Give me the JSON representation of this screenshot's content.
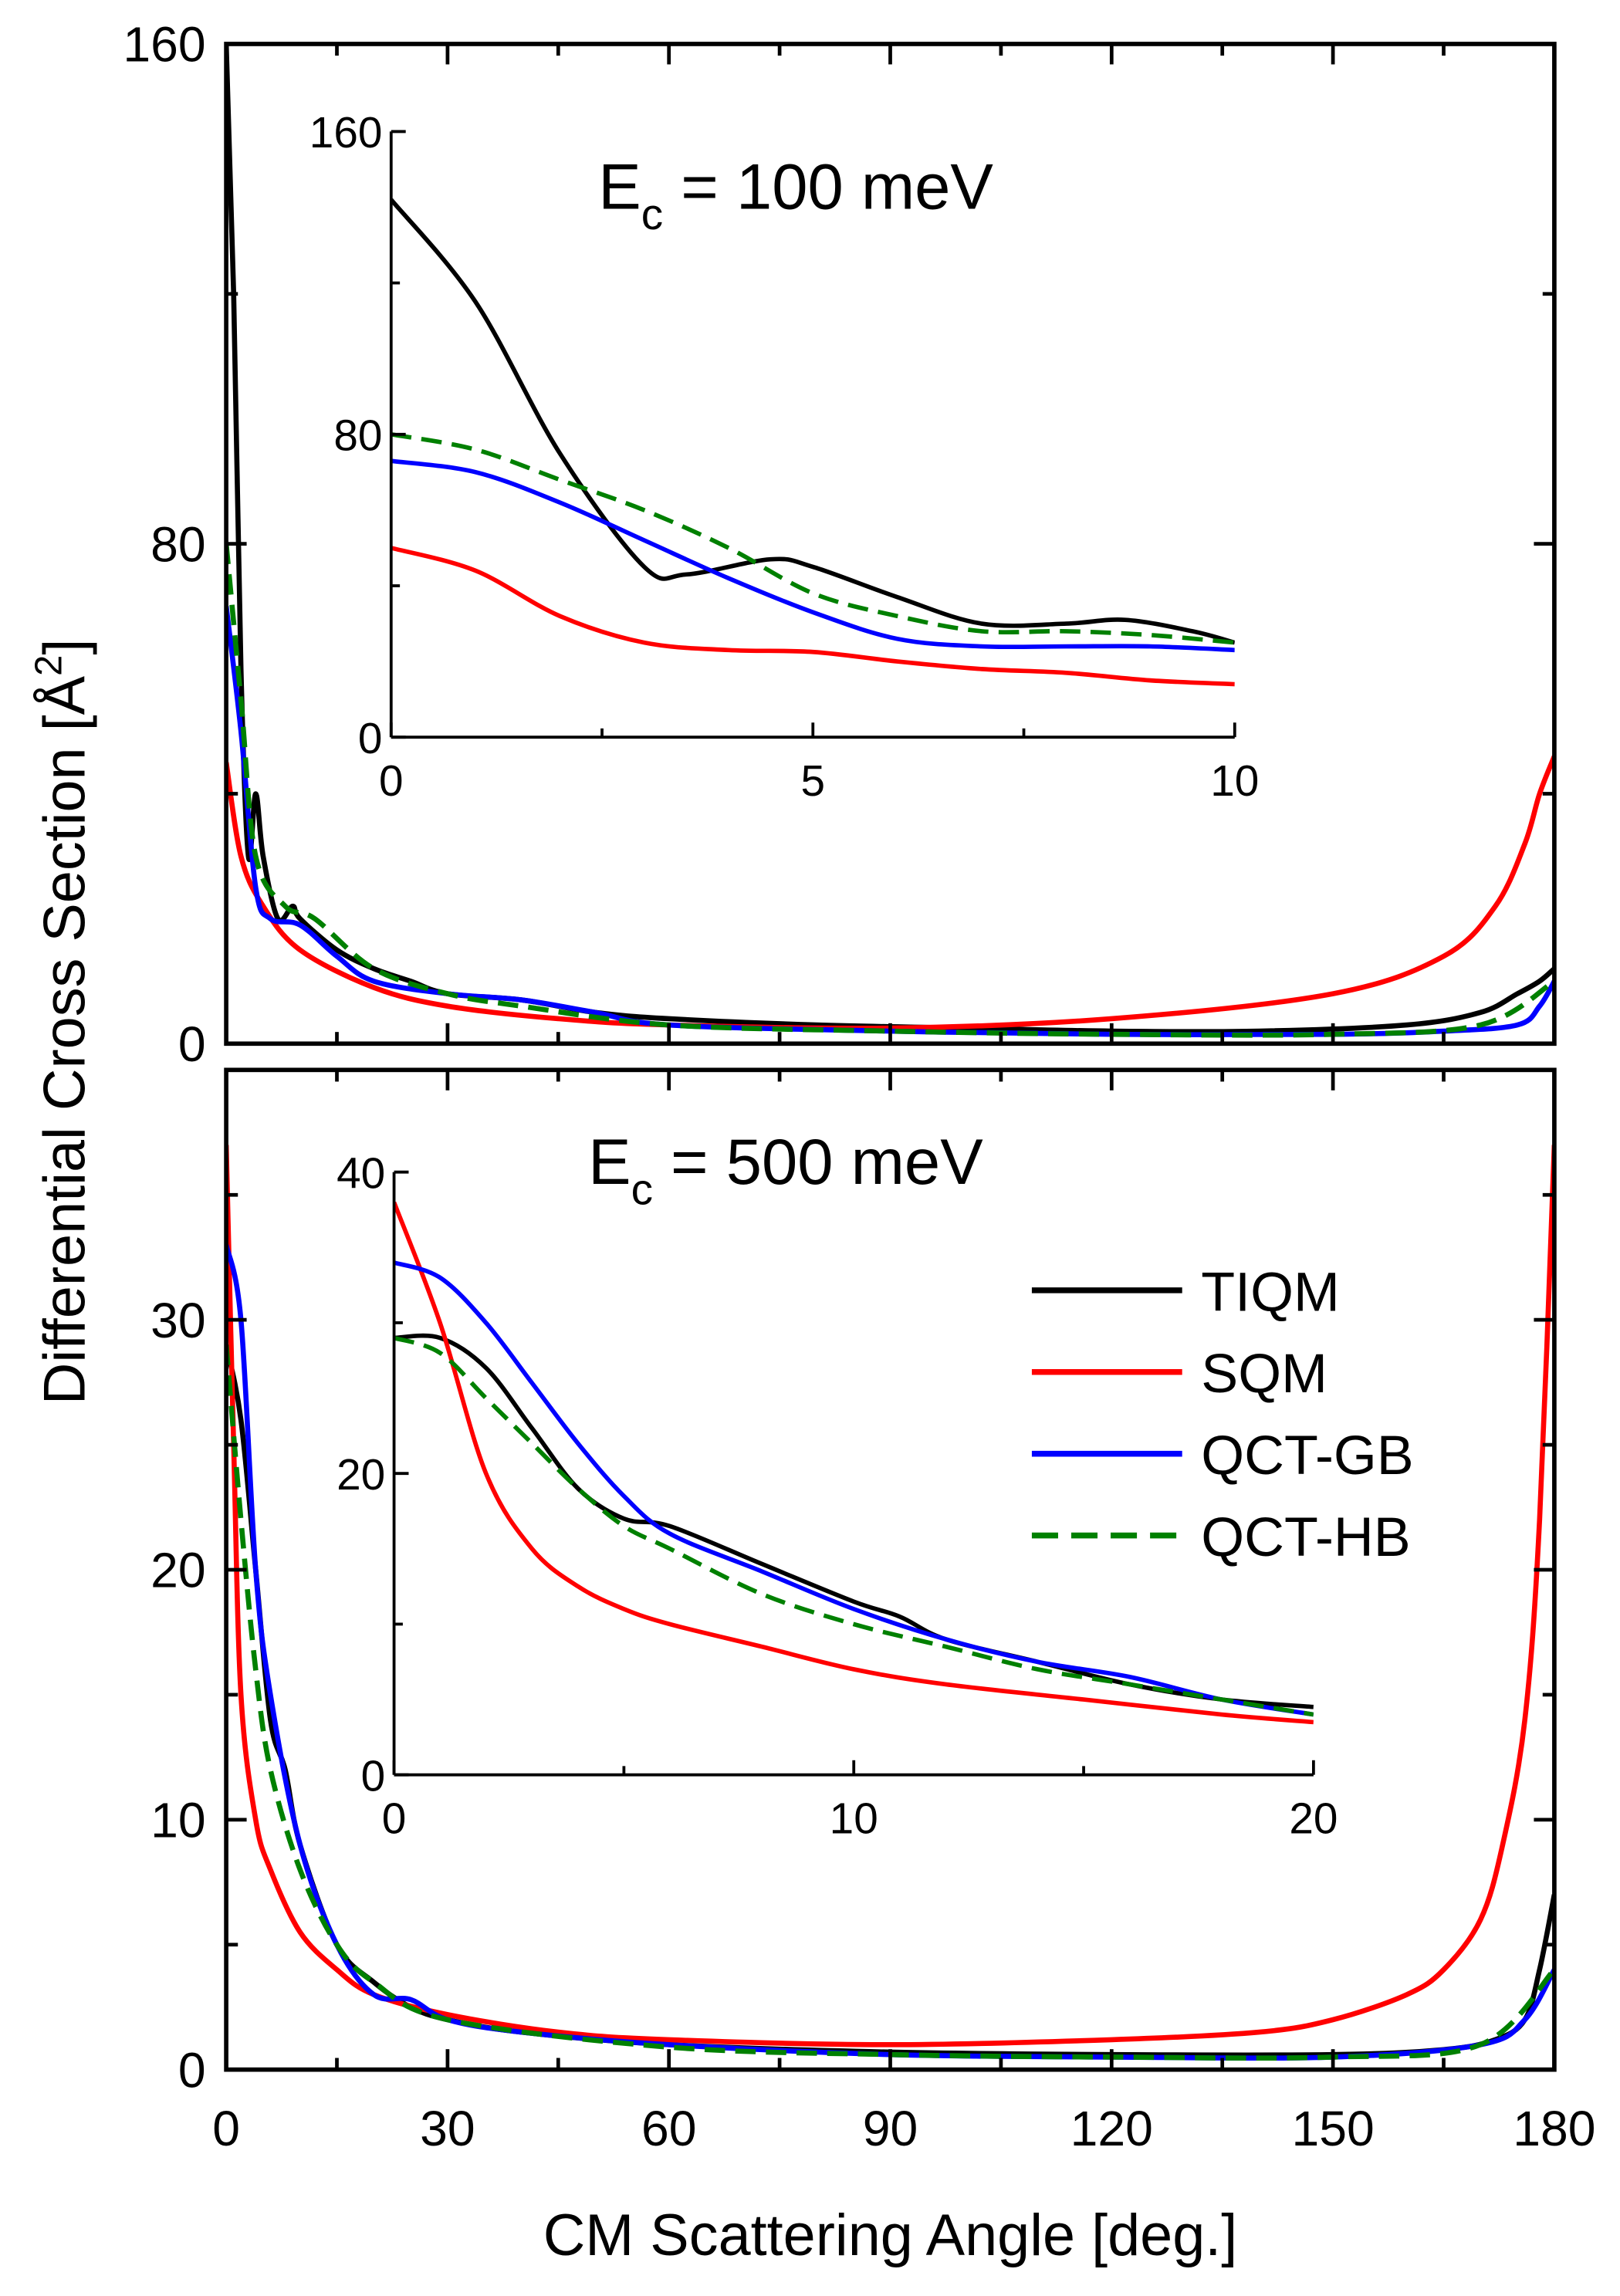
{
  "chart_data": [
    {
      "type": "line",
      "title": "",
      "annotation": "E",
      "annotation_sub": "c",
      "annotation_rest": " = 100 meV",
      "ylim": [
        0,
        160
      ],
      "xlim": [
        0,
        180
      ],
      "xticks": [
        0,
        30,
        60,
        90,
        120,
        150,
        180
      ],
      "yticks": [
        0,
        80,
        160
      ],
      "series": [
        {
          "name": "TIQM",
          "color": "#000000",
          "dash": false,
          "x": [
            0,
            1,
            2,
            3,
            4,
            5,
            7,
            9,
            10,
            15,
            20,
            25,
            30,
            40,
            50,
            60,
            80,
            100,
            120,
            140,
            160,
            170,
            175,
            178,
            180
          ],
          "y": [
            160,
            120,
            60,
            30,
            40,
            30,
            20,
            22,
            20,
            15,
            12,
            10,
            8,
            7,
            5,
            4,
            3,
            2.5,
            2,
            2,
            3,
            5,
            8,
            10,
            12
          ]
        },
        {
          "name": "SQM",
          "color": "#ff0000",
          "dash": false,
          "x": [
            0,
            2,
            5,
            10,
            20,
            30,
            45,
            60,
            90,
            120,
            150,
            165,
            172,
            176,
            178,
            180
          ],
          "y": [
            45,
            30,
            22,
            15,
            9,
            6,
            4,
            3,
            2.5,
            4,
            8,
            14,
            22,
            32,
            40,
            46
          ]
        },
        {
          "name": "QCT-GB",
          "color": "#0000ff",
          "dash": false,
          "x": [
            0,
            2,
            4,
            6,
            10,
            15,
            20,
            30,
            40,
            50,
            60,
            90,
            120,
            150,
            165,
            175,
            178,
            180
          ],
          "y": [
            70,
            50,
            25,
            20,
            19,
            14,
            10,
            8,
            7,
            5,
            3,
            2,
            1.5,
            1.5,
            2,
            3,
            6,
            10
          ]
        },
        {
          "name": "QCT-HB",
          "color": "#008000",
          "dash": true,
          "x": [
            0,
            2,
            4,
            8,
            12,
            20,
            30,
            40,
            60,
            90,
            120,
            150,
            170,
            180
          ],
          "y": [
            80,
            55,
            30,
            22,
            20,
            12,
            8,
            6,
            3,
            2,
            1.5,
            1.5,
            3,
            10
          ]
        }
      ],
      "inset": {
        "xlim": [
          0,
          10
        ],
        "ylim": [
          0,
          160
        ],
        "xticks": [
          0,
          5,
          10
        ],
        "yticks": [
          0,
          80,
          160
        ],
        "series": [
          {
            "name": "TIQM",
            "x": [
              0,
              1,
              2,
              3,
              3.5,
              4.5,
              5,
              6,
              7,
              8,
              8.7,
              9.5,
              10
            ],
            "y": [
              142,
              115,
              75,
              45,
              43,
              47,
              45,
              37,
              30,
              30,
              31,
              28,
              25
            ]
          },
          {
            "name": "SQM",
            "x": [
              0,
              1,
              2,
              3,
              4,
              5,
              6,
              7,
              8,
              9,
              10
            ],
            "y": [
              50,
              44,
              32,
              25,
              23,
              22.5,
              20,
              18,
              17,
              15,
              14
            ]
          },
          {
            "name": "QCT-GB",
            "x": [
              0,
              1,
              2,
              3,
              4,
              5,
              6,
              7,
              8,
              9,
              10
            ],
            "y": [
              73,
              70,
              62,
              52,
              42,
              33,
              26,
              24,
              24,
              24,
              23
            ]
          },
          {
            "name": "QCT-HB",
            "x": [
              0,
              1,
              2,
              3,
              4,
              5,
              6,
              7,
              8,
              9,
              10
            ],
            "y": [
              80,
              76,
              68,
              60,
              50,
              38,
              32,
              28,
              28,
              27,
              25
            ]
          }
        ]
      }
    },
    {
      "type": "line",
      "annotation": "E",
      "annotation_sub": "c",
      "annotation_rest": " = 500 meV",
      "ylim": [
        0,
        40
      ],
      "xlim": [
        0,
        180
      ],
      "xticks": [
        0,
        30,
        60,
        90,
        120,
        150,
        180
      ],
      "yticks": [
        0,
        10,
        20,
        30
      ],
      "series": [
        {
          "name": "TIQM",
          "color": "#000000",
          "dash": false,
          "x": [
            0,
            2,
            4,
            6,
            8,
            10,
            15,
            20,
            25,
            30,
            40,
            60,
            90,
            120,
            150,
            165,
            172,
            176,
            178,
            180
          ],
          "y": [
            29,
            26,
            20,
            14,
            12,
            9,
            5,
            3.5,
            2.5,
            2,
            1.5,
            1,
            0.7,
            0.6,
            0.6,
            0.8,
            1.2,
            2,
            4,
            7
          ]
        },
        {
          "name": "SQM",
          "color": "#ff0000",
          "dash": false,
          "x": [
            0,
            1,
            2,
            4,
            6,
            10,
            15,
            20,
            30,
            45,
            60,
            90,
            120,
            140,
            150,
            160,
            165,
            170,
            173,
            176,
            178,
            180
          ],
          "y": [
            37,
            25,
            15,
            10,
            8,
            5.5,
            4,
            3,
            2.2,
            1.5,
            1.2,
            1,
            1.2,
            1.5,
            2,
            3,
            4,
            6,
            9,
            14,
            22,
            37
          ]
        },
        {
          "name": "QCT-GB",
          "color": "#0000ff",
          "dash": false,
          "x": [
            0,
            2,
            4,
            6,
            10,
            15,
            20,
            25,
            30,
            40,
            60,
            90,
            120,
            150,
            170,
            176,
            180
          ],
          "y": [
            33,
            30,
            20,
            15,
            9,
            5,
            3,
            2.8,
            2,
            1.5,
            1,
            0.6,
            0.5,
            0.5,
            1,
            2,
            4
          ]
        },
        {
          "name": "QCT-HB",
          "color": "#008000",
          "dash": true,
          "x": [
            0,
            2,
            4,
            6,
            10,
            15,
            20,
            30,
            60,
            90,
            120,
            150,
            170,
            180
          ],
          "y": [
            29,
            22,
            16,
            12,
            8,
            5,
            3.5,
            2,
            0.9,
            0.6,
            0.5,
            0.5,
            1,
            4
          ]
        }
      ],
      "inset": {
        "xlim": [
          0,
          20
        ],
        "ylim": [
          0,
          40
        ],
        "xticks": [
          0,
          10,
          20
        ],
        "yticks": [
          0,
          20,
          40
        ],
        "series": [
          {
            "name": "TIQM",
            "x": [
              0,
              1,
              2,
              3,
              4,
              5,
              6,
              8,
              10,
              11,
              12,
              14,
              16,
              18,
              20
            ],
            "y": [
              29,
              29,
              27,
              23,
              19,
              17,
              16.5,
              14,
              11.5,
              10.5,
              9,
              7.5,
              6,
              5,
              4.5
            ]
          },
          {
            "name": "SQM",
            "x": [
              0,
              1,
              2,
              3,
              4,
              5,
              6,
              8,
              10,
              12,
              15,
              18,
              20
            ],
            "y": [
              38,
              30,
              20,
              15,
              12.5,
              11,
              10,
              8.5,
              7,
              6,
              5,
              4,
              3.5
            ]
          },
          {
            "name": "QCT-GB",
            "x": [
              0,
              1,
              2,
              3,
              4,
              5,
              6,
              8,
              10,
              12,
              14,
              16,
              18,
              20
            ],
            "y": [
              34,
              33,
              30,
              26,
              22,
              18.5,
              16,
              13.5,
              11,
              9,
              7.5,
              6.5,
              5,
              4
            ]
          },
          {
            "name": "QCT-HB",
            "x": [
              0,
              1,
              2,
              3,
              4,
              5,
              6,
              8,
              10,
              12,
              14,
              16,
              18,
              20
            ],
            "y": [
              29,
              28,
              25,
              22,
              19,
              16.5,
              15,
              12,
              10,
              8.5,
              7,
              6,
              5,
              4
            ]
          }
        ]
      }
    }
  ],
  "xlabel": "CM Scattering Angle [deg.]",
  "ylabel": "Differential Cross Section [Å",
  "ylabel_sup": "2",
  "ylabel_end": "]",
  "legend": {
    "position": "bottom panel, right",
    "entries": [
      "TIQM",
      "SQM",
      "QCT-GB",
      "QCT-HB"
    ]
  }
}
